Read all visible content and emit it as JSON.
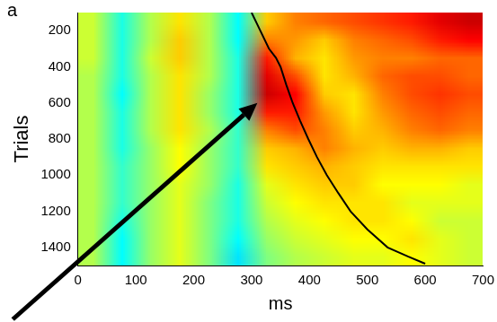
{
  "chart_data": {
    "type": "heatmap",
    "panel_label": "a",
    "x_label": "ms",
    "y_label": "Trials",
    "xlim": [
      0,
      700
    ],
    "xticks": [
      0,
      100,
      200,
      300,
      400,
      500,
      600,
      700
    ],
    "ylim": [
      1500,
      100
    ],
    "yticks": [
      200,
      400,
      600,
      800,
      1000,
      1200,
      1400
    ],
    "grid": false,
    "cells": {
      "x_edges": [
        0,
        50,
        100,
        150,
        200,
        250,
        300,
        350,
        400,
        450,
        500,
        550,
        600,
        650,
        700
      ],
      "y_edges": [
        100,
        200,
        300,
        400,
        500,
        600,
        700,
        800,
        900,
        1000,
        1100,
        1200,
        1300,
        1400,
        1500
      ],
      "color_range": [
        -1,
        1
      ],
      "values": [
        [
          0.15,
          -0.2,
          0.1,
          0.3,
          0.1,
          -0.25,
          0.35,
          0.5,
          0.55,
          0.6,
          0.65,
          0.7,
          0.8,
          0.85
        ],
        [
          0.15,
          -0.2,
          0.1,
          0.35,
          0.1,
          -0.25,
          0.5,
          0.45,
          0.35,
          0.5,
          0.55,
          0.6,
          0.7,
          0.75
        ],
        [
          0.15,
          -0.2,
          0.15,
          0.35,
          0.1,
          -0.2,
          0.7,
          0.4,
          0.3,
          0.45,
          0.5,
          0.5,
          0.55,
          0.55
        ],
        [
          0.1,
          -0.2,
          0.1,
          0.3,
          0.1,
          -0.2,
          0.8,
          0.6,
          0.3,
          0.4,
          0.55,
          0.6,
          0.6,
          0.55
        ],
        [
          0.1,
          -0.25,
          0.1,
          0.3,
          0.05,
          -0.2,
          0.85,
          0.75,
          0.35,
          0.3,
          0.5,
          0.6,
          0.65,
          0.6
        ],
        [
          0.1,
          -0.2,
          0.1,
          0.3,
          0.05,
          -0.2,
          0.7,
          0.7,
          0.45,
          0.3,
          0.45,
          0.55,
          0.6,
          0.55
        ],
        [
          0.1,
          -0.2,
          0.1,
          0.3,
          0.1,
          -0.15,
          0.5,
          0.6,
          0.5,
          0.35,
          0.4,
          0.5,
          0.55,
          0.5
        ],
        [
          0.1,
          -0.2,
          0.05,
          0.25,
          0.05,
          -0.15,
          0.35,
          0.4,
          0.5,
          0.4,
          0.35,
          0.4,
          0.4,
          0.35
        ],
        [
          0.1,
          -0.15,
          0.05,
          0.25,
          0.05,
          -0.15,
          0.3,
          0.35,
          0.4,
          0.35,
          0.3,
          0.3,
          0.3,
          0.3
        ],
        [
          0.1,
          -0.15,
          0.05,
          0.2,
          0.05,
          -0.2,
          0.2,
          0.3,
          0.35,
          0.35,
          0.25,
          0.25,
          0.25,
          0.2
        ],
        [
          0.1,
          -0.15,
          0.05,
          0.2,
          0.0,
          -0.2,
          0.15,
          0.25,
          0.3,
          0.3,
          0.3,
          0.2,
          0.2,
          0.2
        ],
        [
          0.1,
          -0.2,
          0.05,
          0.2,
          0.0,
          -0.2,
          0.1,
          0.2,
          0.25,
          0.3,
          0.3,
          0.25,
          0.15,
          0.15
        ],
        [
          0.1,
          -0.25,
          0.05,
          0.2,
          0.0,
          -0.25,
          0.05,
          0.15,
          0.2,
          0.25,
          0.25,
          0.3,
          0.2,
          0.15
        ],
        [
          0.1,
          -0.25,
          0.05,
          0.2,
          0.0,
          -0.3,
          0.0,
          0.1,
          0.15,
          0.2,
          0.2,
          0.25,
          0.2,
          0.15
        ]
      ]
    },
    "series": [
      {
        "type": "line",
        "color": "#000000",
        "x": [
          300,
          315,
          330,
          342,
          350,
          360,
          371,
          384,
          398,
          413,
          430,
          450,
          471,
          500,
          535,
          570,
          600
        ],
        "y": [
          100,
          200,
          300,
          350,
          400,
          500,
          600,
          700,
          800,
          900,
          1000,
          1100,
          1200,
          1300,
          1400,
          1450,
          1490
        ]
      }
    ]
  }
}
